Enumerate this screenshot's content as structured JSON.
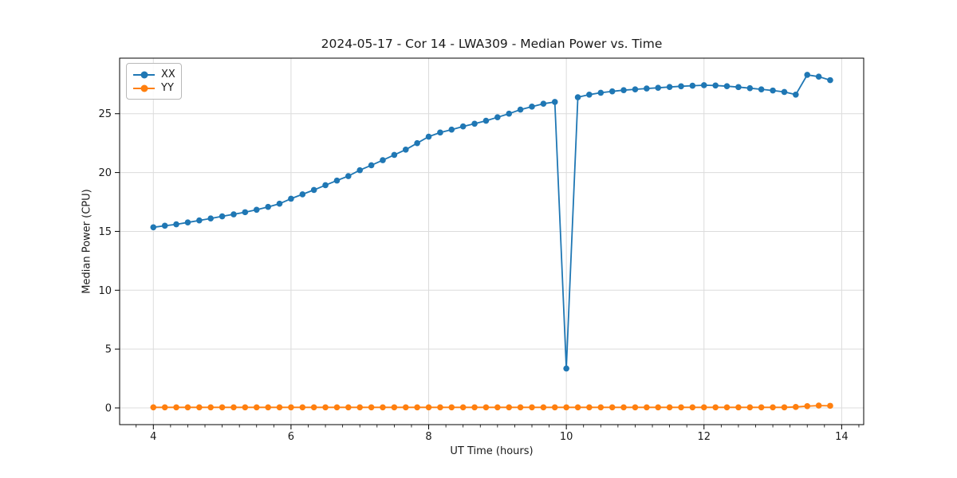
{
  "chart_data": {
    "type": "line",
    "title": "2024-05-17 - Cor 14 - LWA309 - Median Power vs. Time",
    "xlabel": "UT Time (hours)",
    "ylabel": "Median Power (CPU)",
    "xlim": [
      3.51,
      14.32
    ],
    "ylim": [
      -1.42,
      29.72
    ],
    "xticks": [
      4,
      6,
      8,
      10,
      12,
      14
    ],
    "yticks": [
      0,
      5,
      10,
      15,
      20,
      25
    ],
    "minor_xtick_step": 0.25,
    "grid": true,
    "grid_color": "#dcdcdc",
    "spine_color": "#000000",
    "legend_position": "upper-left",
    "x": [
      4.0,
      4.167,
      4.333,
      4.5,
      4.667,
      4.833,
      5.0,
      5.167,
      5.333,
      5.5,
      5.667,
      5.833,
      6.0,
      6.167,
      6.333,
      6.5,
      6.667,
      6.833,
      7.0,
      7.167,
      7.333,
      7.5,
      7.667,
      7.833,
      8.0,
      8.167,
      8.333,
      8.5,
      8.667,
      8.833,
      9.0,
      9.167,
      9.333,
      9.5,
      9.667,
      9.833,
      10.0,
      10.167,
      10.333,
      10.5,
      10.667,
      10.833,
      11.0,
      11.167,
      11.333,
      11.5,
      11.667,
      11.833,
      12.0,
      12.167,
      12.333,
      12.5,
      12.667,
      12.833,
      13.0,
      13.167,
      13.333,
      13.5,
      13.667,
      13.833
    ],
    "series": [
      {
        "name": "XX",
        "color": "#1f77b4",
        "values": [
          15.35,
          15.48,
          15.6,
          15.76,
          15.93,
          16.1,
          16.28,
          16.45,
          16.63,
          16.84,
          17.08,
          17.35,
          17.78,
          18.15,
          18.52,
          18.93,
          19.32,
          19.7,
          20.2,
          20.62,
          21.05,
          21.5,
          21.95,
          22.5,
          23.05,
          23.4,
          23.65,
          23.92,
          24.15,
          24.4,
          24.7,
          25.0,
          25.35,
          25.6,
          25.85,
          26.0,
          3.35,
          26.4,
          26.62,
          26.78,
          26.9,
          27.0,
          27.07,
          27.14,
          27.2,
          27.27,
          27.33,
          27.38,
          27.42,
          27.4,
          27.34,
          27.26,
          27.17,
          27.07,
          26.97,
          26.85,
          26.62,
          28.3,
          28.15,
          27.85
        ]
      },
      {
        "name": "YY",
        "color": "#ff7f0e",
        "values": [
          0.05,
          0.05,
          0.05,
          0.05,
          0.05,
          0.05,
          0.05,
          0.05,
          0.05,
          0.05,
          0.05,
          0.05,
          0.05,
          0.05,
          0.05,
          0.05,
          0.05,
          0.05,
          0.05,
          0.05,
          0.05,
          0.05,
          0.05,
          0.05,
          0.05,
          0.05,
          0.05,
          0.05,
          0.05,
          0.05,
          0.05,
          0.05,
          0.05,
          0.05,
          0.05,
          0.05,
          0.05,
          0.05,
          0.05,
          0.05,
          0.05,
          0.05,
          0.05,
          0.05,
          0.05,
          0.05,
          0.05,
          0.05,
          0.05,
          0.05,
          0.05,
          0.05,
          0.05,
          0.05,
          0.05,
          0.05,
          0.08,
          0.15,
          0.2,
          0.18
        ]
      }
    ]
  }
}
